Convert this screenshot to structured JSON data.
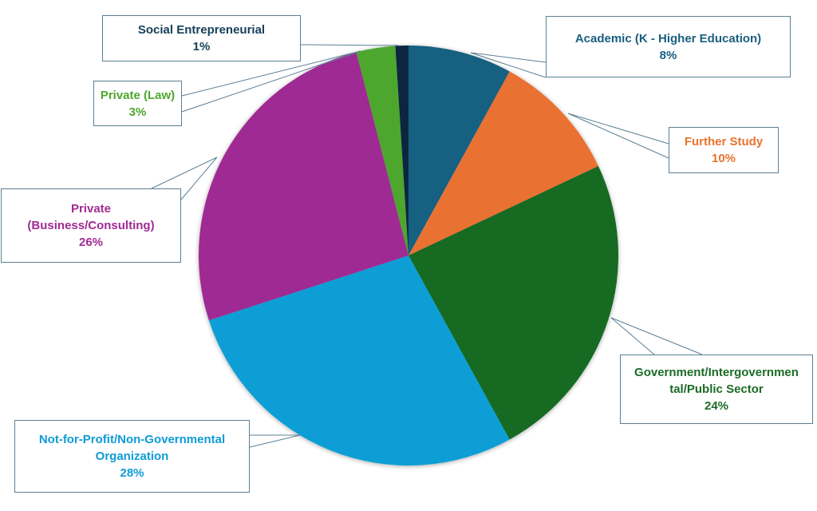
{
  "chart_data": {
    "type": "pie",
    "title": "",
    "slices": [
      {
        "label": "Academic (K - Higher Education)",
        "value": 8,
        "pct": "8%",
        "color": "#156082",
        "text_color": "#1a5e80"
      },
      {
        "label": "Further Study",
        "value": 10,
        "pct": "10%",
        "color": "#e97132",
        "text_color": "#e8732f"
      },
      {
        "label": "Government/Intergovernmen tal/Public Sector",
        "label_lines": [
          "Government/Intergovernmen",
          "tal/Public Sector"
        ],
        "value": 24,
        "pct": "24%",
        "color": "#196b24",
        "text_color": "#1b6b25"
      },
      {
        "label": "Not-for-Profit/Non-Governmental Organization",
        "label_lines": [
          "Not-for-Profit/Non-Governmental",
          "Organization"
        ],
        "value": 28,
        "pct": "28%",
        "color": "#0f9ed5",
        "text_color": "#0f9bd7"
      },
      {
        "label": "Private (Business/Consulting)",
        "label_lines": [
          "Private",
          "(Business/Consulting)"
        ],
        "value": 26,
        "pct": "26%",
        "color": "#a02b93",
        "text_color": "#a02b93"
      },
      {
        "label": "Private (Law)",
        "value": 3,
        "pct": "3%",
        "color": "#4ea72e",
        "text_color": "#4ea72e"
      },
      {
        "label": "Social Entrepreneurial",
        "value": 1,
        "pct": "1%",
        "color": "#0e2841",
        "text_color": "#17405a"
      }
    ],
    "start_angle": "12 o'clock",
    "direction": "clockwise",
    "legend": "none (callout data labels)"
  }
}
